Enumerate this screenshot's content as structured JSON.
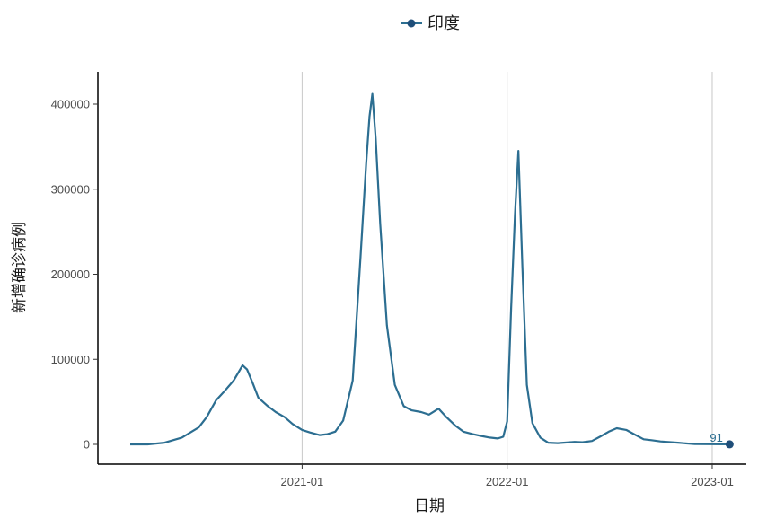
{
  "chart_data": {
    "type": "line",
    "xlabel": "日期",
    "ylabel": "新增确诊病例",
    "ylim": [
      0,
      420000
    ],
    "xlim": [
      "2020-03-01",
      "2023-02-10"
    ],
    "grid": "vertical major gridlines only",
    "legend_position": "top",
    "yticks": [
      {
        "value": 0,
        "label": "0"
      },
      {
        "value": 100000,
        "label": "100000"
      },
      {
        "value": 200000,
        "label": "200000"
      },
      {
        "value": 300000,
        "label": "300000"
      },
      {
        "value": 400000,
        "label": "400000"
      }
    ],
    "xticks": [
      {
        "value": "2021-01-01",
        "label": "2021-01"
      },
      {
        "value": "2022-01-01",
        "label": "2022-01"
      },
      {
        "value": "2023-01-01",
        "label": "2023-01"
      }
    ],
    "series": [
      {
        "name": "印度",
        "color": "#2c6e91",
        "marker_color": "#1f4e79",
        "x": [
          "2020-03-01",
          "2020-04-01",
          "2020-05-01",
          "2020-06-01",
          "2020-07-01",
          "2020-07-15",
          "2020-08-01",
          "2020-08-15",
          "2020-09-01",
          "2020-09-10",
          "2020-09-17",
          "2020-09-25",
          "2020-10-05",
          "2020-10-15",
          "2020-11-01",
          "2020-11-15",
          "2020-12-01",
          "2020-12-15",
          "2021-01-01",
          "2021-01-15",
          "2021-02-01",
          "2021-02-15",
          "2021-03-01",
          "2021-03-15",
          "2021-04-01",
          "2021-04-15",
          "2021-04-25",
          "2021-05-01",
          "2021-05-06",
          "2021-05-12",
          "2021-05-20",
          "2021-06-01",
          "2021-06-15",
          "2021-07-01",
          "2021-07-15",
          "2021-08-01",
          "2021-08-15",
          "2021-09-01",
          "2021-09-15",
          "2021-10-01",
          "2021-10-15",
          "2021-11-01",
          "2021-11-15",
          "2021-12-01",
          "2021-12-15",
          "2021-12-25",
          "2022-01-01",
          "2022-01-08",
          "2022-01-15",
          "2022-01-21",
          "2022-01-28",
          "2022-02-05",
          "2022-02-15",
          "2022-03-01",
          "2022-03-15",
          "2022-04-01",
          "2022-05-01",
          "2022-05-15",
          "2022-06-01",
          "2022-06-15",
          "2022-07-01",
          "2022-07-15",
          "2022-08-01",
          "2022-08-15",
          "2022-09-01",
          "2022-09-15",
          "2022-10-01",
          "2022-11-01",
          "2022-12-01",
          "2023-01-01",
          "2023-02-01"
        ],
        "y": [
          0,
          50,
          2000,
          8000,
          20000,
          32000,
          52000,
          62000,
          75000,
          85000,
          93000,
          88000,
          72000,
          55000,
          45000,
          38000,
          32000,
          24000,
          17000,
          14000,
          11000,
          12000,
          15000,
          28000,
          75000,
          220000,
          330000,
          385000,
          412000,
          360000,
          260000,
          140000,
          70000,
          45000,
          40000,
          38000,
          35000,
          42000,
          32000,
          22000,
          15000,
          12000,
          10000,
          8000,
          7000,
          9000,
          27000,
          160000,
          270000,
          345000,
          210000,
          70000,
          25000,
          8000,
          2000,
          1500,
          3000,
          2500,
          4000,
          9000,
          15000,
          19000,
          17000,
          12000,
          6000,
          5000,
          3500,
          2000,
          300,
          200,
          100
        ]
      }
    ],
    "annotations": [
      {
        "text": "91",
        "x": "2023-01-20",
        "y": 91
      }
    ]
  }
}
